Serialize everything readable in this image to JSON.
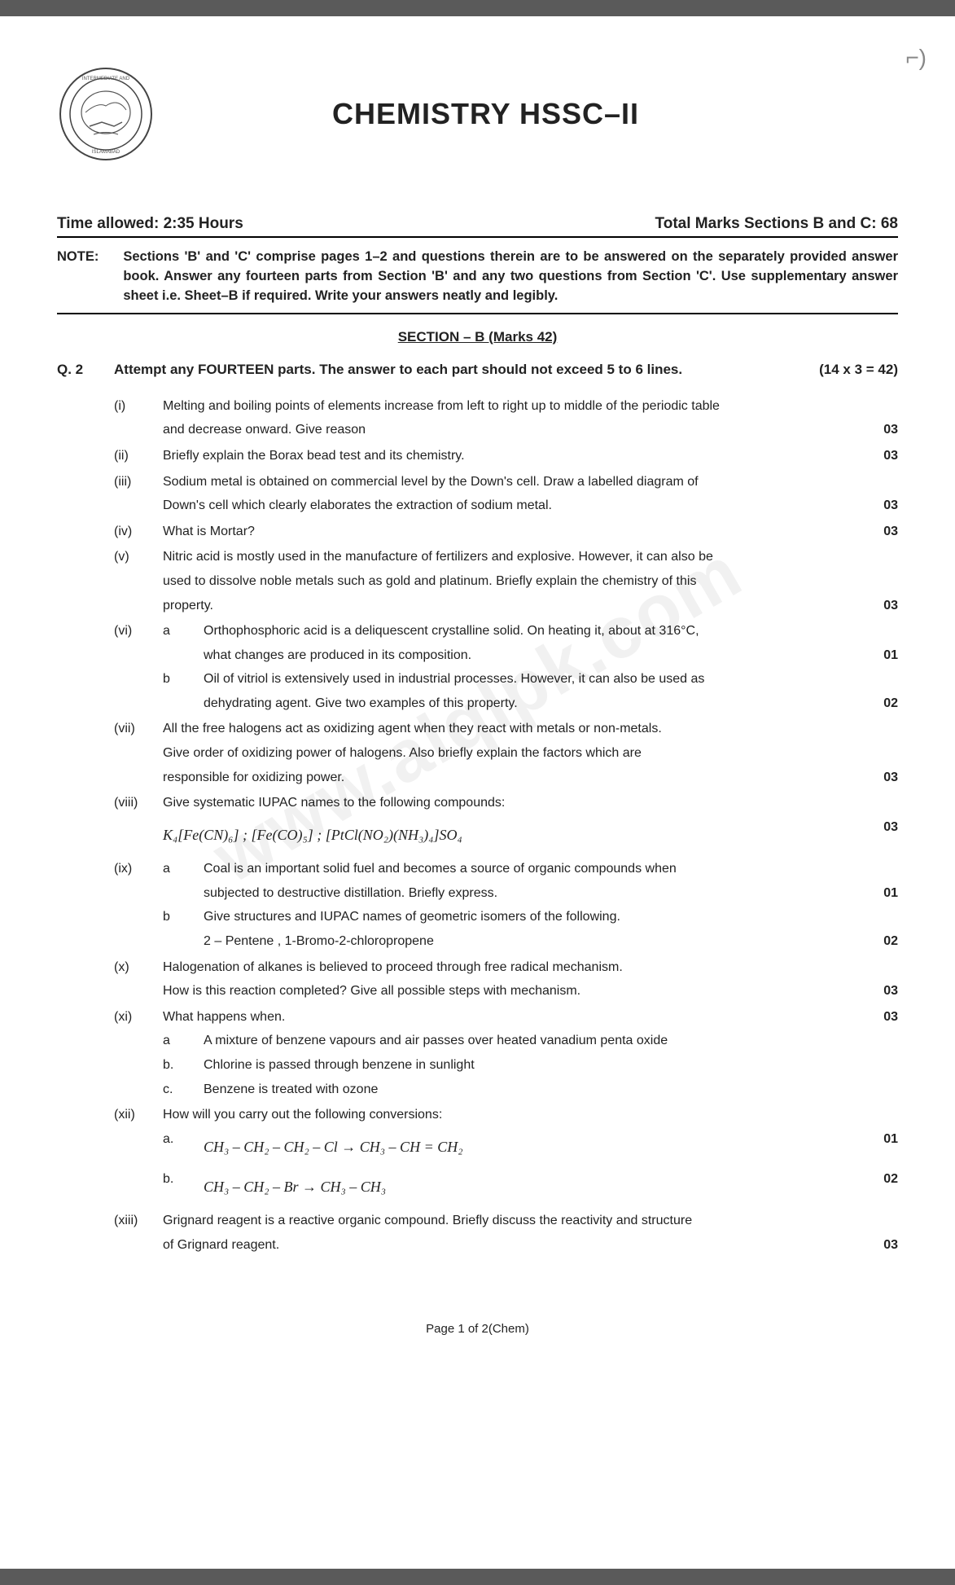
{
  "corner": "⌐)",
  "title": "CHEMISTRY HSSC–II",
  "time_label": "Time allowed:  2:35 Hours",
  "marks_label": "Total Marks Sections B and C:  68",
  "note_label": "NOTE:",
  "note_text": "Sections 'B' and 'C' comprise pages 1–2 and questions therein are to be answered on the separately provided answer book. Answer any fourteen parts from Section 'B' and any two questions from Section 'C'. Use supplementary answer sheet i.e. Sheet–B if required. Write your answers neatly and legibly.",
  "section_title": "SECTION – B (Marks 42)",
  "q2_label": "Q. 2",
  "q2_text": "Attempt any FOURTEEN parts. The answer to each part should not exceed 5 to 6 lines.",
  "q2_marks": "(14 x 3 = 42)",
  "parts": [
    {
      "num": "(i)",
      "lines": [
        {
          "text": "Melting and boiling points of elements increase from left to right up to middle of the periodic table",
          "marks": ""
        },
        {
          "text": "and decrease onward. Give reason",
          "marks": "03"
        }
      ]
    },
    {
      "num": "(ii)",
      "lines": [
        {
          "text": "Briefly explain the Borax bead test and its chemistry.",
          "marks": "03"
        }
      ]
    },
    {
      "num": "(iii)",
      "lines": [
        {
          "text": "Sodium metal is obtained on commercial level by the Down's cell. Draw a labelled diagram of",
          "marks": ""
        },
        {
          "text": "Down's cell which clearly elaborates the extraction of sodium metal.",
          "marks": "03"
        }
      ]
    },
    {
      "num": "(iv)",
      "lines": [
        {
          "text": "What is Mortar?",
          "marks": "03"
        }
      ]
    },
    {
      "num": "(v)",
      "lines": [
        {
          "text": "Nitric acid is mostly used in the manufacture of fertilizers and explosive. However, it can also be",
          "marks": ""
        },
        {
          "text": "used to dissolve noble metals such as gold and platinum. Briefly explain the chemistry of this",
          "marks": ""
        },
        {
          "text": "property.",
          "marks": "03"
        }
      ]
    },
    {
      "num": "(vi)",
      "subs": [
        {
          "label": "a",
          "lines": [
            {
              "text": "Orthophosphoric acid is a deliquescent crystalline solid. On heating it, about at 316°C,",
              "marks": ""
            },
            {
              "text": "what changes are produced in its composition.",
              "marks": "01"
            }
          ]
        },
        {
          "label": "b",
          "lines": [
            {
              "text": "Oil of vitriol is extensively used in industrial processes. However, it can also be used as",
              "marks": ""
            },
            {
              "text": "dehydrating agent. Give two examples of this property.",
              "marks": "02"
            }
          ]
        }
      ]
    },
    {
      "num": "(vii)",
      "lines": [
        {
          "text": "All the free halogens act as oxidizing agent when they react with metals or non-metals.",
          "marks": ""
        },
        {
          "text": "Give order of oxidizing power of halogens. Also briefly explain the factors which are",
          "marks": ""
        },
        {
          "text": "responsible for oxidizing power.",
          "marks": "03"
        }
      ]
    },
    {
      "num": "(viii)",
      "lines": [
        {
          "text": "Give systematic IUPAC names to the following compounds:",
          "marks": ""
        }
      ],
      "formula": "K₄[Fe(CN)₆]   ;   [Fe(CO)₅]   ;   [PtCl(NO₂)(NH₃)₄]SO₄",
      "formula_marks": "03"
    },
    {
      "num": "(ix)",
      "subs": [
        {
          "label": "a",
          "lines": [
            {
              "text": "Coal is an important solid fuel and becomes a source of organic compounds when",
              "marks": ""
            },
            {
              "text": "subjected to destructive distillation. Briefly express.",
              "marks": "01"
            }
          ]
        },
        {
          "label": "b",
          "lines": [
            {
              "text": "Give structures and IUPAC names of geometric isomers of the following.",
              "marks": ""
            },
            {
              "text": "2 – Pentene      ,      1-Bromo-2-chloropropene",
              "marks": "02"
            }
          ]
        }
      ]
    },
    {
      "num": "(x)",
      "lines": [
        {
          "text": "Halogenation of alkanes is believed to proceed through free radical mechanism.",
          "marks": ""
        },
        {
          "text": "How is this reaction completed? Give all possible steps with mechanism.",
          "marks": "03"
        }
      ]
    },
    {
      "num": "(xi)",
      "lines": [
        {
          "text": "What happens when.",
          "marks": "03"
        }
      ],
      "subs": [
        {
          "label": "a",
          "lines": [
            {
              "text": "A mixture of benzene vapours and air passes over heated vanadium penta oxide",
              "marks": ""
            }
          ]
        },
        {
          "label": "b.",
          "lines": [
            {
              "text": "Chlorine is passed through benzene in sunlight",
              "marks": ""
            }
          ]
        },
        {
          "label": "c.",
          "lines": [
            {
              "text": "Benzene is treated with ozone",
              "marks": ""
            }
          ]
        }
      ]
    },
    {
      "num": "(xii)",
      "lines": [
        {
          "text": "How will you carry out the following conversions:",
          "marks": ""
        }
      ],
      "subs": [
        {
          "label": "a.",
          "formula": "CH₃ – CH₂ – CH₂ – Cl → CH₃ – CH = CH₂",
          "formula_marks": "01"
        },
        {
          "label": "b.",
          "formula": "CH₃ – CH₂ – Br → CH₃ – CH₃",
          "formula_marks": "02"
        }
      ]
    },
    {
      "num": "(xiii)",
      "lines": [
        {
          "text": "Grignard reagent is a reactive organic compound. Briefly discuss the reactivity and structure",
          "marks": ""
        },
        {
          "text": "of Grignard reagent.",
          "marks": "03"
        }
      ]
    }
  ],
  "footer": "Page 1 of 2(Chem)",
  "watermark": "www.alqlpk.com",
  "colors": {
    "bg": "#ffffff",
    "text": "#222222",
    "page_bg": "#5a5a5a",
    "watermark": "rgba(200,200,200,0.25)"
  }
}
